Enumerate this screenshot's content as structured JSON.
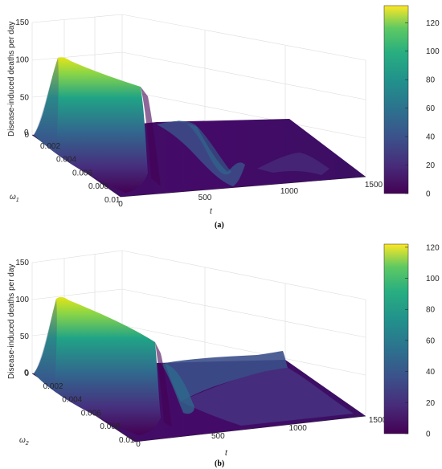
{
  "chart_data": [
    {
      "type": "surface",
      "panel_label": "(a)",
      "zlabel": "Disease-induced deaths per day",
      "xlabel": "t",
      "ylabel_main": "ω",
      "ylabel_sub": "1",
      "zticks": [
        "0",
        "50",
        "100",
        "150"
      ],
      "xticks": [
        "0",
        "500",
        "1000",
        "1500"
      ],
      "yticks": [
        "0",
        "0.002",
        "0.004",
        "0.006",
        "0.008",
        "0.01"
      ],
      "zlim": [
        0,
        150
      ],
      "xlim": [
        0,
        1500
      ],
      "ylim": [
        0,
        0.01
      ],
      "colorbar": {
        "ticks": [
          "0",
          "20",
          "40",
          "60",
          "80",
          "100",
          "120"
        ],
        "max": 132
      },
      "ridge": [
        {
          "t": 0,
          "deaths": 0
        },
        {
          "t": 50,
          "deaths": 30
        },
        {
          "t": 90,
          "deaths": 128
        },
        {
          "t": 130,
          "deaths": 125
        },
        {
          "t": 180,
          "deaths": 40
        },
        {
          "t": 240,
          "deaths": 0
        },
        {
          "t": 370,
          "deaths": 4
        },
        {
          "t": 470,
          "deaths": 20
        },
        {
          "t": 560,
          "deaths": 4
        },
        {
          "t": 700,
          "deaths": 2
        },
        {
          "t": 900,
          "deaths": 10
        },
        {
          "t": 1050,
          "deaths": 6
        },
        {
          "t": 1200,
          "deaths": 3
        },
        {
          "t": 1500,
          "deaths": 2
        }
      ]
    },
    {
      "type": "surface",
      "panel_label": "(b)",
      "zlabel": "Disease-induced deaths per day",
      "xlabel": "t",
      "ylabel_main": "ω",
      "ylabel_sub": "2",
      "zticks": [
        "0",
        "50",
        "100",
        "150"
      ],
      "xticks": [
        "0",
        "500",
        "1000",
        "1500"
      ],
      "yticks": [
        "0",
        "0.002",
        "0.004",
        "0.006",
        "0.008",
        "0.01"
      ],
      "zlim": [
        0,
        150
      ],
      "xlim": [
        0,
        1500
      ],
      "ylim": [
        0,
        0.01
      ],
      "colorbar": {
        "ticks": [
          "0",
          "20",
          "40",
          "60",
          "80",
          "100",
          "120"
        ],
        "max": 122
      },
      "ridge": [
        {
          "t": 0,
          "deaths": 0
        },
        {
          "t": 50,
          "deaths": 30
        },
        {
          "t": 90,
          "deaths": 118
        },
        {
          "t": 140,
          "deaths": 115
        },
        {
          "t": 180,
          "deaths": 40
        },
        {
          "t": 230,
          "deaths": 0
        },
        {
          "t": 330,
          "deaths": 12
        },
        {
          "t": 420,
          "deaths": 2
        },
        {
          "t": 600,
          "deaths": 8
        },
        {
          "t": 800,
          "deaths": 16
        },
        {
          "t": 1000,
          "deaths": 20
        },
        {
          "t": 1200,
          "deaths": 6
        },
        {
          "t": 1500,
          "deaths": 2
        }
      ]
    }
  ]
}
